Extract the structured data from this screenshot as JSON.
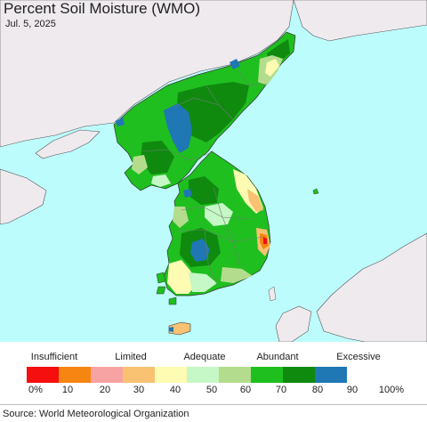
{
  "title": "Percent Soil Moisture (WMO)",
  "date": "Jul. 5, 2025",
  "legend": {
    "categories": [
      "Insufficient",
      "Limited",
      "Adequate",
      "Abundant",
      "Excessive"
    ],
    "ticks": [
      "0%",
      "10",
      "20",
      "30",
      "40",
      "50",
      "60",
      "70",
      "80",
      "90",
      "100%"
    ],
    "colors": [
      "#f50f0f",
      "#f78512",
      "#f7a3a3",
      "#f8c272",
      "#fefcb2",
      "#c6f7c6",
      "#b3dd8c",
      "#1fbf1f",
      "#0f8a0f",
      "#1f77b4"
    ]
  },
  "colors": {
    "sea": "#bdfcfc",
    "foreign_land": "#eeeaee",
    "region_border": "#6f7f6f"
  },
  "source": "Source: World Meteorological Organization"
}
